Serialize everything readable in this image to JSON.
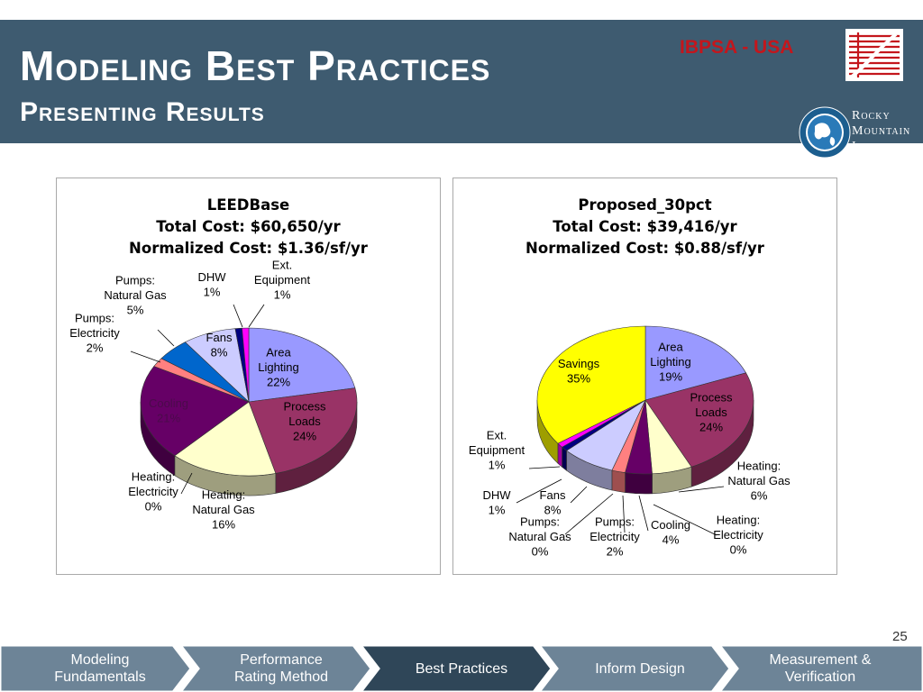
{
  "slide": {
    "title": "Modeling Best Practices",
    "subtitle": "Presenting Results",
    "page_number": "25"
  },
  "logos": {
    "ibpsa": "IBPSA - USA",
    "rmi_line1": "Rocky",
    "rmi_line2": "Mountain",
    "rmi_line3": "Institute"
  },
  "colors": {
    "header_bg": "#3e5b70",
    "ibpsa_red": "#c4161c",
    "nav_bg": "#6d8497",
    "nav_active": "#2f4658"
  },
  "nav": {
    "items": [
      {
        "label_1": "Modeling",
        "label_2": "Fundamentals",
        "active": false
      },
      {
        "label_1": "Performance",
        "label_2": "Rating Method",
        "active": false
      },
      {
        "label_1": "Best Practices",
        "label_2": "",
        "active": true
      },
      {
        "label_1": "Inform Design",
        "label_2": "",
        "active": false
      },
      {
        "label_1": "Measurement &",
        "label_2": "Verification",
        "active": false
      }
    ]
  },
  "chart_data": [
    {
      "type": "pie",
      "title_lines": [
        "LEEDBase",
        "Total Cost: $60,650/yr",
        "Normalized Cost: $1.36/sf/yr"
      ],
      "slices": [
        {
          "label_lines": [
            "Area",
            "Lighting",
            "22%"
          ],
          "value": 22,
          "color": "#9999ff"
        },
        {
          "label_lines": [
            "Process",
            "Loads",
            "24%"
          ],
          "value": 24,
          "color": "#993366"
        },
        {
          "label_lines": [
            "Heating:",
            "Natural Gas",
            "16%"
          ],
          "value": 16,
          "color": "#ffffcc"
        },
        {
          "label_lines": [
            "Heating:",
            "Electricity",
            "0%"
          ],
          "value": 0,
          "color": "#ccffff"
        },
        {
          "label_lines": [
            "Cooling",
            "21%"
          ],
          "value": 21,
          "color": "#660066"
        },
        {
          "label_lines": [
            "Pumps:",
            "Electricity",
            "2%"
          ],
          "value": 2,
          "color": "#ff8080"
        },
        {
          "label_lines": [
            "Pumps:",
            "Natural Gas",
            "5%"
          ],
          "value": 5,
          "color": "#0066cc"
        },
        {
          "label_lines": [
            "Fans",
            "8%"
          ],
          "value": 8,
          "color": "#ccccff"
        },
        {
          "label_lines": [
            "DHW",
            "1%"
          ],
          "value": 1,
          "color": "#000080"
        },
        {
          "label_lines": [
            "Ext.",
            "Equipment",
            "1%"
          ],
          "value": 1,
          "color": "#ff00ff"
        }
      ]
    },
    {
      "type": "pie",
      "title_lines": [
        "Proposed_30pct",
        "Total Cost: $39,416/yr",
        "Normalized Cost: $0.88/sf/yr"
      ],
      "slices": [
        {
          "label_lines": [
            "Area",
            "Lighting",
            "19%"
          ],
          "value": 19,
          "color": "#9999ff"
        },
        {
          "label_lines": [
            "Process",
            "Loads",
            "24%"
          ],
          "value": 24,
          "color": "#993366"
        },
        {
          "label_lines": [
            "Heating:",
            "Natural Gas",
            "6%"
          ],
          "value": 6,
          "color": "#ffffcc"
        },
        {
          "label_lines": [
            "Heating:",
            "Electricity",
            "0%"
          ],
          "value": 0,
          "color": "#ccffff"
        },
        {
          "label_lines": [
            "Cooling",
            "4%"
          ],
          "value": 4,
          "color": "#660066"
        },
        {
          "label_lines": [
            "Pumps:",
            "Electricity",
            "2%"
          ],
          "value": 2,
          "color": "#ff8080"
        },
        {
          "label_lines": [
            "Pumps:",
            "Natural Gas",
            "0%"
          ],
          "value": 0,
          "color": "#0066cc"
        },
        {
          "label_lines": [
            "Fans",
            "8%"
          ],
          "value": 8,
          "color": "#ccccff"
        },
        {
          "label_lines": [
            "DHW",
            "1%"
          ],
          "value": 1,
          "color": "#000080"
        },
        {
          "label_lines": [
            "Ext.",
            "Equipment",
            "1%"
          ],
          "value": 1,
          "color": "#ff00ff"
        },
        {
          "label_lines": [
            "Savings",
            "35%"
          ],
          "value": 35,
          "color": "#ffff00"
        }
      ]
    }
  ]
}
